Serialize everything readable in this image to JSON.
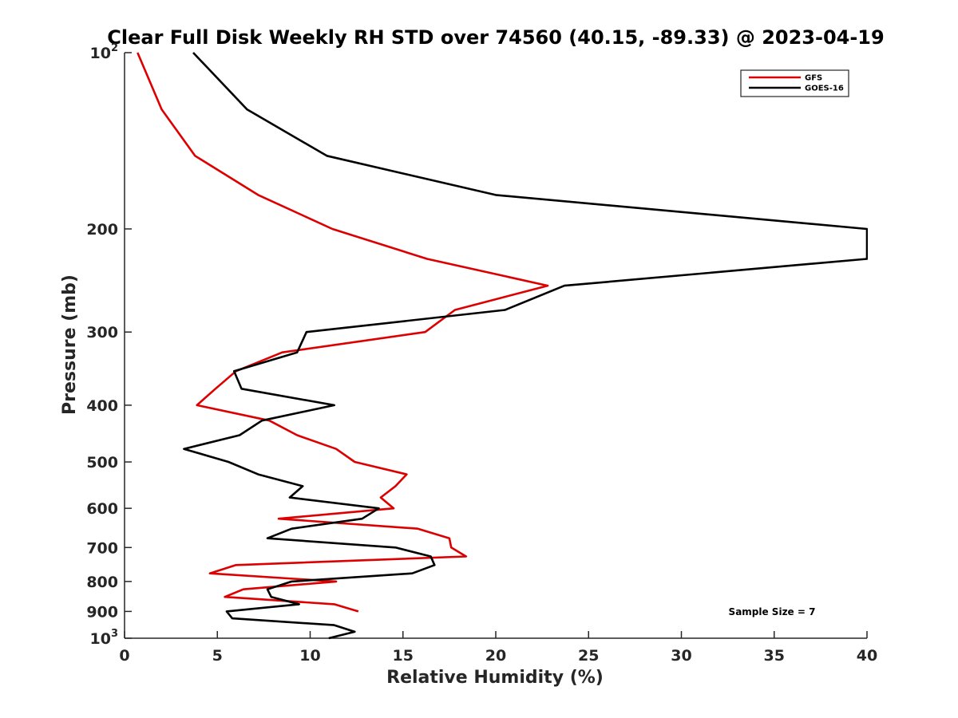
{
  "chart_data": {
    "type": "line",
    "title": "Clear Full Disk Weekly RH STD over 74560 (40.15, -89.33) @ 2023-04-19",
    "xlabel": "Relative Humidity (%)",
    "ylabel": "Pressure (mb)",
    "xlim": [
      0,
      40
    ],
    "ylim": [
      100,
      1000
    ],
    "y_scale": "log",
    "y_reversed": true,
    "grid": false,
    "legend_position": "top-right",
    "x_ticks": [
      0,
      5,
      10,
      15,
      20,
      25,
      30,
      35,
      40
    ],
    "y_ticks": [
      {
        "value": 100,
        "base": "10",
        "exp": "2"
      },
      {
        "value": 200,
        "label": "200"
      },
      {
        "value": 300,
        "label": "300"
      },
      {
        "value": 400,
        "label": "400"
      },
      {
        "value": 500,
        "label": "500"
      },
      {
        "value": 600,
        "label": "600"
      },
      {
        "value": 700,
        "label": "700"
      },
      {
        "value": 800,
        "label": "800"
      },
      {
        "value": 900,
        "label": "900"
      },
      {
        "value": 1000,
        "base": "10",
        "exp": "3"
      }
    ],
    "annotation": "Sample Size = 7",
    "series": [
      {
        "name": "GFS",
        "color": "#dd0000",
        "points": [
          [
            0.7,
            100
          ],
          [
            2.0,
            125
          ],
          [
            3.8,
            150
          ],
          [
            7.2,
            175
          ],
          [
            11.2,
            200
          ],
          [
            16.3,
            225
          ],
          [
            22.8,
            250
          ],
          [
            17.8,
            275
          ],
          [
            16.2,
            300
          ],
          [
            8.5,
            325
          ],
          [
            6.0,
            350
          ],
          [
            4.9,
            375
          ],
          [
            3.9,
            400
          ],
          [
            7.8,
            425
          ],
          [
            9.3,
            450
          ],
          [
            11.4,
            475
          ],
          [
            12.4,
            500
          ],
          [
            15.2,
            525
          ],
          [
            14.6,
            550
          ],
          [
            13.8,
            575
          ],
          [
            14.5,
            600
          ],
          [
            8.3,
            625
          ],
          [
            15.8,
            650
          ],
          [
            17.5,
            675
          ],
          [
            17.6,
            700
          ],
          [
            18.4,
            725
          ],
          [
            6.0,
            750
          ],
          [
            4.6,
            775
          ],
          [
            11.4,
            800
          ],
          [
            6.4,
            825
          ],
          [
            5.4,
            850
          ],
          [
            11.3,
            875
          ],
          [
            12.6,
            900
          ]
        ]
      },
      {
        "name": "GOES-16",
        "color": "#000000",
        "points": [
          [
            3.7,
            100
          ],
          [
            6.6,
            125
          ],
          [
            10.9,
            150
          ],
          [
            20.0,
            175
          ],
          [
            40.0,
            200
          ],
          [
            40.0,
            225
          ],
          [
            23.7,
            250
          ],
          [
            20.5,
            275
          ],
          [
            9.8,
            300
          ],
          [
            9.3,
            325
          ],
          [
            5.9,
            350
          ],
          [
            6.3,
            375
          ],
          [
            11.3,
            400
          ],
          [
            7.4,
            425
          ],
          [
            6.2,
            450
          ],
          [
            3.2,
            475
          ],
          [
            5.6,
            500
          ],
          [
            7.2,
            525
          ],
          [
            9.6,
            550
          ],
          [
            8.9,
            575
          ],
          [
            13.7,
            600
          ],
          [
            12.8,
            625
          ],
          [
            9.0,
            650
          ],
          [
            7.7,
            675
          ],
          [
            14.6,
            700
          ],
          [
            16.5,
            725
          ],
          [
            16.7,
            750
          ],
          [
            15.5,
            775
          ],
          [
            9.0,
            800
          ],
          [
            7.7,
            825
          ],
          [
            7.9,
            850
          ],
          [
            9.4,
            875
          ],
          [
            5.5,
            900
          ],
          [
            5.8,
            925
          ],
          [
            11.3,
            950
          ],
          [
            12.4,
            975
          ],
          [
            11.0,
            1000
          ]
        ]
      }
    ]
  }
}
